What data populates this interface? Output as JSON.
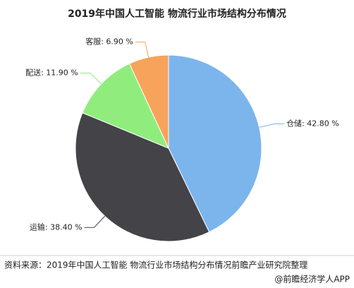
{
  "chart_data": {
    "type": "pie",
    "title": "2019年中国人工智能 物流行业市场结构分布情况",
    "values": [
      42.8,
      38.4,
      11.9,
      6.9
    ],
    "value_labels": [
      "仓储: 42.80 %",
      "运输: 38.40 %",
      "配送: 11.90 %",
      "客服: 6.90 %"
    ],
    "colors": [
      "#7cb5ec",
      "#434348",
      "#90ed7d",
      "#f7a35c"
    ],
    "source": "资料来源：2019年中国人工智能 物流行业市场结构分布情况前瞻产业研究院整理",
    "watermark": "@前瞻经济学人APP"
  }
}
